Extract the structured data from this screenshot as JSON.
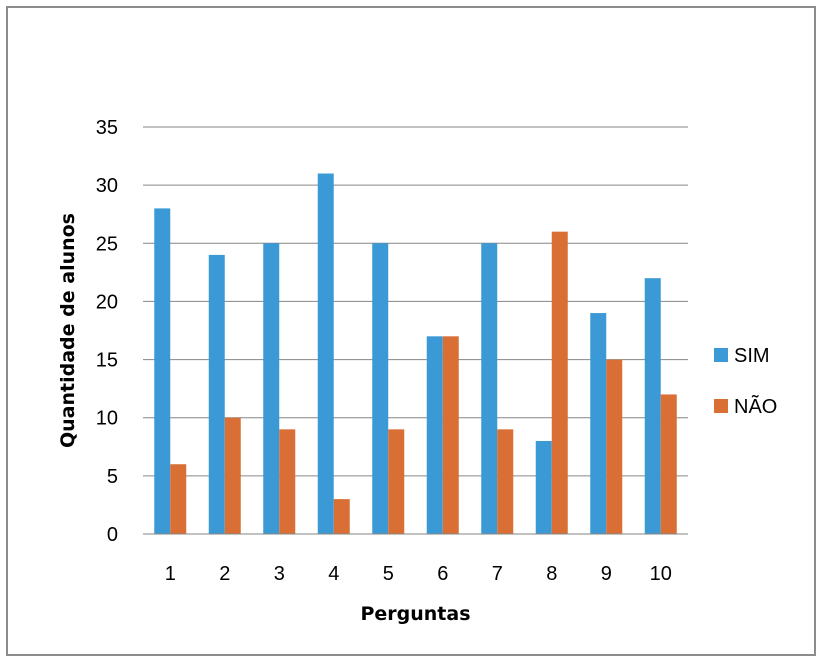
{
  "chart_data": {
    "type": "bar",
    "categories": [
      "1",
      "2",
      "3",
      "4",
      "5",
      "6",
      "7",
      "8",
      "9",
      "10"
    ],
    "series": [
      {
        "name": "SIM",
        "color": "#3b9ad5",
        "values": [
          28,
          24,
          25,
          31,
          25,
          17,
          25,
          8,
          19,
          22
        ]
      },
      {
        "name": "NÃO",
        "color": "#d96f35",
        "values": [
          6,
          10,
          9,
          3,
          9,
          17,
          9,
          26,
          15,
          12
        ]
      }
    ],
    "xlabel": "Perguntas",
    "ylabel": "Quantidade de alunos",
    "ylim": [
      0,
      35
    ],
    "yticks": [
      0,
      5,
      10,
      15,
      20,
      25,
      30,
      35
    ],
    "grid": true,
    "legend_position": "right"
  }
}
